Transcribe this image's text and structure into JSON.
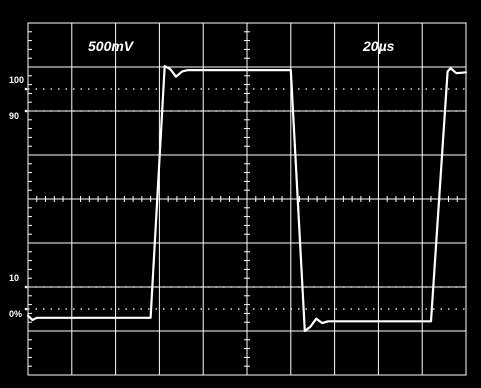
{
  "chart_data": {
    "type": "line",
    "title": "",
    "xlabel": "",
    "ylabel": "",
    "volts_per_div": "500mV",
    "time_per_div": "20µs",
    "grid": true,
    "divisions": {
      "x": 10,
      "y": 8
    },
    "xlim": [
      0,
      10
    ],
    "ylim": [
      -4,
      4
    ],
    "percent_markers": [
      {
        "label": "100",
        "y": 2.5
      },
      {
        "label": "90",
        "y": 2.0
      },
      {
        "label": "10",
        "y": -2.0
      },
      {
        "label": "0%",
        "y": -2.5
      }
    ],
    "series": [
      {
        "color": "#ffffff",
        "x": [
          0.0,
          0.1,
          0.2,
          0.35,
          2.8,
          3.12,
          3.25,
          3.38,
          3.52,
          3.65,
          6.0,
          6.32,
          6.45,
          6.58,
          6.72,
          6.85,
          9.2,
          9.58,
          9.65,
          9.78,
          10.0
        ],
        "y": [
          -2.65,
          -2.75,
          -2.7,
          -2.7,
          -2.7,
          3.02,
          2.95,
          2.78,
          2.9,
          2.93,
          2.93,
          -3.0,
          -2.9,
          -2.72,
          -2.82,
          -2.78,
          -2.78,
          2.9,
          2.97,
          2.86,
          2.88
        ]
      }
    ]
  }
}
